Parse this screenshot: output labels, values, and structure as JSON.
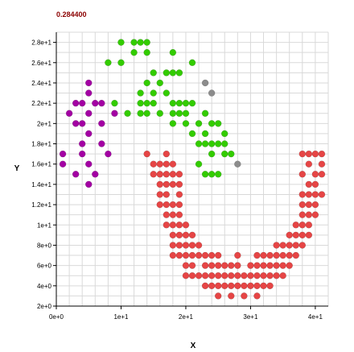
{
  "chart_data": {
    "type": "scatter",
    "title": "0.284400",
    "xlabel": "X",
    "ylabel": "Y",
    "xlim": [
      0,
      42
    ],
    "ylim": [
      2,
      29
    ],
    "grid": true,
    "x_ticks": [
      {
        "value": 0,
        "label": "0e+0"
      },
      {
        "value": 10,
        "label": "1e+1"
      },
      {
        "value": 20,
        "label": "2e+1"
      },
      {
        "value": 30,
        "label": "3e+1"
      },
      {
        "value": 40,
        "label": "4e+1"
      }
    ],
    "y_ticks": [
      {
        "value": 2,
        "label": "2e+0"
      },
      {
        "value": 4,
        "label": "4e+0"
      },
      {
        "value": 6,
        "label": "6e+0"
      },
      {
        "value": 8,
        "label": "8e+0"
      },
      {
        "value": 10,
        "label": "1e+1"
      },
      {
        "value": 12,
        "label": "1.2e+1"
      },
      {
        "value": 14,
        "label": "1.4e+1"
      },
      {
        "value": 16,
        "label": "1.6e+1"
      },
      {
        "value": 18,
        "label": "1.8e+1"
      },
      {
        "value": 20,
        "label": "2e+1"
      },
      {
        "value": 22,
        "label": "2.2e+1"
      },
      {
        "value": 24,
        "label": "2.4e+1"
      },
      {
        "value": 26,
        "label": "2.6e+1"
      },
      {
        "value": 28,
        "label": "2.8e+1"
      }
    ],
    "colors": {
      "title": "#8b0000",
      "axis": "#000000",
      "grid": "#d9d9d9"
    },
    "series": [
      {
        "color": "#a300a3",
        "points": [
          [
            5,
            24
          ],
          [
            5,
            23
          ],
          [
            3,
            22
          ],
          [
            4,
            22
          ],
          [
            6,
            22
          ],
          [
            7,
            22
          ],
          [
            2,
            21
          ],
          [
            5,
            21
          ],
          [
            9,
            21
          ],
          [
            3,
            20
          ],
          [
            4,
            20
          ],
          [
            7,
            20
          ],
          [
            5,
            19
          ],
          [
            4,
            18
          ],
          [
            7,
            18
          ],
          [
            1,
            17
          ],
          [
            4,
            17
          ],
          [
            8,
            17
          ],
          [
            1,
            16
          ],
          [
            5,
            16
          ],
          [
            3,
            15
          ],
          [
            6,
            15
          ],
          [
            5,
            14
          ]
        ]
      },
      {
        "color": "#33cc00",
        "points": [
          [
            10,
            28
          ],
          [
            12,
            28
          ],
          [
            13,
            28
          ],
          [
            14,
            28
          ],
          [
            12,
            27
          ],
          [
            14,
            27
          ],
          [
            18,
            27
          ],
          [
            8,
            26
          ],
          [
            10,
            26
          ],
          [
            21,
            26
          ],
          [
            15,
            25
          ],
          [
            17,
            25
          ],
          [
            18,
            25
          ],
          [
            19,
            25
          ],
          [
            14,
            24
          ],
          [
            16,
            24
          ],
          [
            13,
            23
          ],
          [
            15,
            23
          ],
          [
            17,
            23
          ],
          [
            9,
            22
          ],
          [
            13,
            22
          ],
          [
            14,
            22
          ],
          [
            15,
            22
          ],
          [
            18,
            22
          ],
          [
            19,
            22
          ],
          [
            20,
            22
          ],
          [
            21,
            22
          ],
          [
            11,
            21
          ],
          [
            13,
            21
          ],
          [
            14,
            21
          ],
          [
            16,
            21
          ],
          [
            18,
            21
          ],
          [
            19,
            21
          ],
          [
            20,
            21
          ],
          [
            23,
            21
          ],
          [
            18,
            20
          ],
          [
            20,
            20
          ],
          [
            22,
            20
          ],
          [
            24,
            20
          ],
          [
            25,
            20
          ],
          [
            21,
            19
          ],
          [
            23,
            19
          ],
          [
            26,
            19
          ],
          [
            22,
            18
          ],
          [
            23,
            18
          ],
          [
            24,
            18
          ],
          [
            25,
            18
          ],
          [
            26,
            18
          ],
          [
            24,
            17
          ],
          [
            26,
            17
          ],
          [
            27,
            17
          ],
          [
            22,
            16
          ],
          [
            23,
            15
          ],
          [
            24,
            15
          ],
          [
            25,
            15
          ]
        ]
      },
      {
        "color": "#8c8c8c",
        "points": [
          [
            23,
            24
          ],
          [
            24,
            23
          ],
          [
            28,
            16
          ]
        ]
      },
      {
        "color": "#e64545",
        "points": [
          [
            14,
            17
          ],
          [
            17,
            17
          ],
          [
            38,
            17
          ],
          [
            39,
            17
          ],
          [
            40,
            17
          ],
          [
            41,
            17
          ],
          [
            15,
            16
          ],
          [
            16,
            16
          ],
          [
            17,
            16
          ],
          [
            18,
            16
          ],
          [
            39,
            16
          ],
          [
            41,
            16
          ],
          [
            15,
            15
          ],
          [
            16,
            15
          ],
          [
            17,
            15
          ],
          [
            18,
            15
          ],
          [
            19,
            15
          ],
          [
            38,
            15
          ],
          [
            40,
            15
          ],
          [
            41,
            15
          ],
          [
            16,
            14
          ],
          [
            17,
            14
          ],
          [
            18,
            14
          ],
          [
            19,
            14
          ],
          [
            39,
            14
          ],
          [
            40,
            14
          ],
          [
            16,
            13
          ],
          [
            17,
            13
          ],
          [
            19,
            13
          ],
          [
            38,
            13
          ],
          [
            39,
            13
          ],
          [
            40,
            13
          ],
          [
            41,
            13
          ],
          [
            16,
            12
          ],
          [
            17,
            12
          ],
          [
            18,
            12
          ],
          [
            19,
            12
          ],
          [
            38,
            12
          ],
          [
            39,
            12
          ],
          [
            40,
            12
          ],
          [
            17,
            11
          ],
          [
            18,
            11
          ],
          [
            19,
            11
          ],
          [
            38,
            11
          ],
          [
            39,
            11
          ],
          [
            40,
            11
          ],
          [
            17,
            10
          ],
          [
            18,
            10
          ],
          [
            19,
            10
          ],
          [
            20,
            10
          ],
          [
            37,
            10
          ],
          [
            38,
            10
          ],
          [
            39,
            10
          ],
          [
            18,
            9
          ],
          [
            19,
            9
          ],
          [
            20,
            9
          ],
          [
            21,
            9
          ],
          [
            36,
            9
          ],
          [
            37,
            9
          ],
          [
            38,
            9
          ],
          [
            39,
            9
          ],
          [
            18,
            8
          ],
          [
            19,
            8
          ],
          [
            20,
            8
          ],
          [
            21,
            8
          ],
          [
            22,
            8
          ],
          [
            34,
            8
          ],
          [
            35,
            8
          ],
          [
            36,
            8
          ],
          [
            37,
            8
          ],
          [
            38,
            8
          ],
          [
            18,
            7
          ],
          [
            19,
            7
          ],
          [
            20,
            7
          ],
          [
            21,
            7
          ],
          [
            22,
            7
          ],
          [
            23,
            7
          ],
          [
            24,
            7
          ],
          [
            25,
            7
          ],
          [
            28,
            7
          ],
          [
            31,
            7
          ],
          [
            32,
            7
          ],
          [
            33,
            7
          ],
          [
            34,
            7
          ],
          [
            35,
            7
          ],
          [
            36,
            7
          ],
          [
            37,
            7
          ],
          [
            20,
            6
          ],
          [
            21,
            6
          ],
          [
            23,
            6
          ],
          [
            24,
            6
          ],
          [
            25,
            6
          ],
          [
            26,
            6
          ],
          [
            27,
            6
          ],
          [
            28,
            6
          ],
          [
            30,
            6
          ],
          [
            31,
            6
          ],
          [
            32,
            6
          ],
          [
            33,
            6
          ],
          [
            34,
            6
          ],
          [
            35,
            6
          ],
          [
            36,
            6
          ],
          [
            20,
            5
          ],
          [
            21,
            5
          ],
          [
            22,
            5
          ],
          [
            23,
            5
          ],
          [
            24,
            5
          ],
          [
            25,
            5
          ],
          [
            26,
            5
          ],
          [
            27,
            5
          ],
          [
            28,
            5
          ],
          [
            29,
            5
          ],
          [
            30,
            5
          ],
          [
            31,
            5
          ],
          [
            32,
            5
          ],
          [
            33,
            5
          ],
          [
            34,
            5
          ],
          [
            35,
            5
          ],
          [
            23,
            4
          ],
          [
            24,
            4
          ],
          [
            25,
            4
          ],
          [
            26,
            4
          ],
          [
            27,
            4
          ],
          [
            28,
            4
          ],
          [
            29,
            4
          ],
          [
            30,
            4
          ],
          [
            31,
            4
          ],
          [
            32,
            4
          ],
          [
            33,
            4
          ],
          [
            25,
            3
          ],
          [
            27,
            3
          ],
          [
            29,
            3
          ],
          [
            31,
            3
          ]
        ]
      }
    ]
  }
}
